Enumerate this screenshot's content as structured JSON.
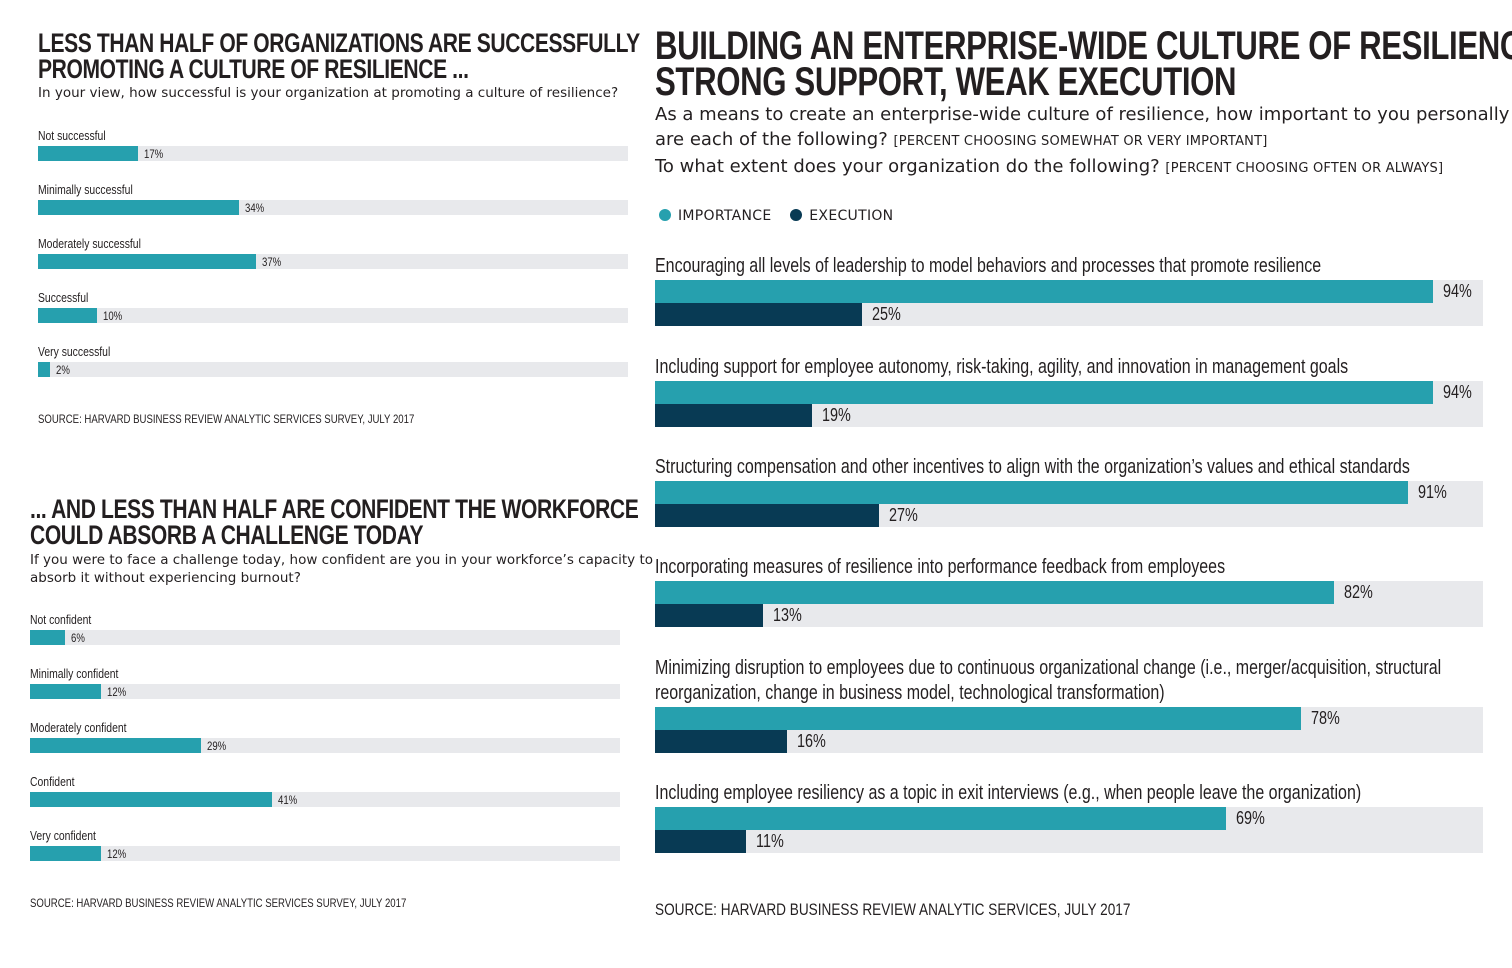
{
  "chart_data": [
    {
      "type": "bar",
      "orientation": "horizontal",
      "title": "LESS THAN HALF OF ORGANIZATIONS ARE SUCCESSFULLY PROMOTING A CULTURE OF RESILIENCE ...",
      "title_lines": [
        "LESS THAN HALF OF ORGANIZATIONS ARE SUCCESSFULLY",
        "PROMOTING A CULTURE OF RESILIENCE ..."
      ],
      "subtitle": "In your view, how successful is your organization at promoting a culture of resilience?",
      "categories": [
        "Not successful",
        "Minimally successful",
        "Moderately successful",
        "Successful",
        "Very successful"
      ],
      "values": [
        17,
        34,
        37,
        10,
        2
      ],
      "value_labels": [
        "17%",
        "34%",
        "37%",
        "10%",
        "2%"
      ],
      "xlim": [
        0,
        100
      ],
      "source": "SOURCE: HARVARD BUSINESS REVIEW ANALYTIC SERVICES SURVEY, JULY 2017",
      "bar_color": "#26a0ae",
      "track_color": "#e8e9ec"
    },
    {
      "type": "bar",
      "orientation": "horizontal",
      "title": "... AND LESS THAN HALF ARE CONFIDENT THE WORKFORCE COULD ABSORB A CHALLENGE TODAY",
      "title_lines": [
        "... AND LESS THAN HALF ARE CONFIDENT THE WORKFORCE",
        "COULD ABSORB A CHALLENGE TODAY"
      ],
      "subtitle": "If you were to face a challenge today, how confident are you in your workforce’s capacity to absorb it without experiencing burnout?",
      "subtitle_lines": [
        "If you were to face a challenge today, how confident are you in your workforce’s capacity to",
        "absorb it without experiencing burnout?"
      ],
      "categories": [
        "Not confident",
        "Minimally confident",
        "Moderately confident",
        "Confident",
        "Very confident"
      ],
      "values": [
        6,
        12,
        29,
        41,
        12
      ],
      "value_labels": [
        "6%",
        "12%",
        "29%",
        "41%",
        "12%"
      ],
      "xlim": [
        0,
        100
      ],
      "source": "SOURCE: HARVARD BUSINESS REVIEW ANALYTIC SERVICES SURVEY, JULY 2017",
      "bar_color": "#26a0ae",
      "track_color": "#e8e9ec"
    },
    {
      "type": "bar",
      "orientation": "horizontal",
      "title": "BUILDING AN ENTERPRISE-WIDE CULTURE OF RESILIENCE: STRONG SUPPORT, WEAK EXECUTION",
      "title_lines": [
        "BUILDING AN ENTERPRISE-WIDE CULTURE OF RESILIENCE:",
        "STRONG SUPPORT, WEAK EXECUTION"
      ],
      "question1_line1": "As a means to create an enterprise-wide culture of resilience, how important to you personally",
      "question1_line2": "are each of the following?",
      "question1_note": "[PERCENT CHOOSING SOMEWHAT OR VERY IMPORTANT]",
      "question2": "To what extent does your organization do the following?",
      "question2_note": "[PERCENT CHOOSING OFTEN OR ALWAYS]",
      "legend": [
        "IMPORTANCE",
        "EXECUTION"
      ],
      "colors": {
        "importance": "#26a0ae",
        "execution": "#083a54"
      },
      "categories": [
        [
          "Encouraging all levels of leadership to model behaviors and processes that promote resilience"
        ],
        [
          "Including support for employee autonomy, risk-taking, agility, and innovation in management goals"
        ],
        [
          "Structuring compensation and other incentives to align with the organization’s values and ethical standards"
        ],
        [
          "Incorporating measures of resilience into performance feedback from employees"
        ],
        [
          "Minimizing disruption to employees due to continuous organizational change (i.e., merger/acquisition, structural",
          "reorganization, change in business model, technological transformation)"
        ],
        [
          "Including employee resiliency as a topic in exit interviews (e.g., when people leave the organization)"
        ]
      ],
      "series": [
        {
          "name": "IMPORTANCE",
          "values": [
            94,
            94,
            91,
            82,
            78,
            69
          ],
          "value_labels": [
            "94%",
            "94%",
            "91%",
            "82%",
            "78%",
            "69%"
          ]
        },
        {
          "name": "EXECUTION",
          "values": [
            25,
            19,
            27,
            13,
            16,
            11
          ],
          "value_labels": [
            "25%",
            "19%",
            "27%",
            "13%",
            "16%",
            "11%"
          ]
        }
      ],
      "xlim": [
        0,
        100
      ],
      "source": "SOURCE: HARVARD BUSINESS REVIEW ANALYTIC SERVICES, JULY 2017",
      "track_color": "#e8e9ec"
    }
  ]
}
